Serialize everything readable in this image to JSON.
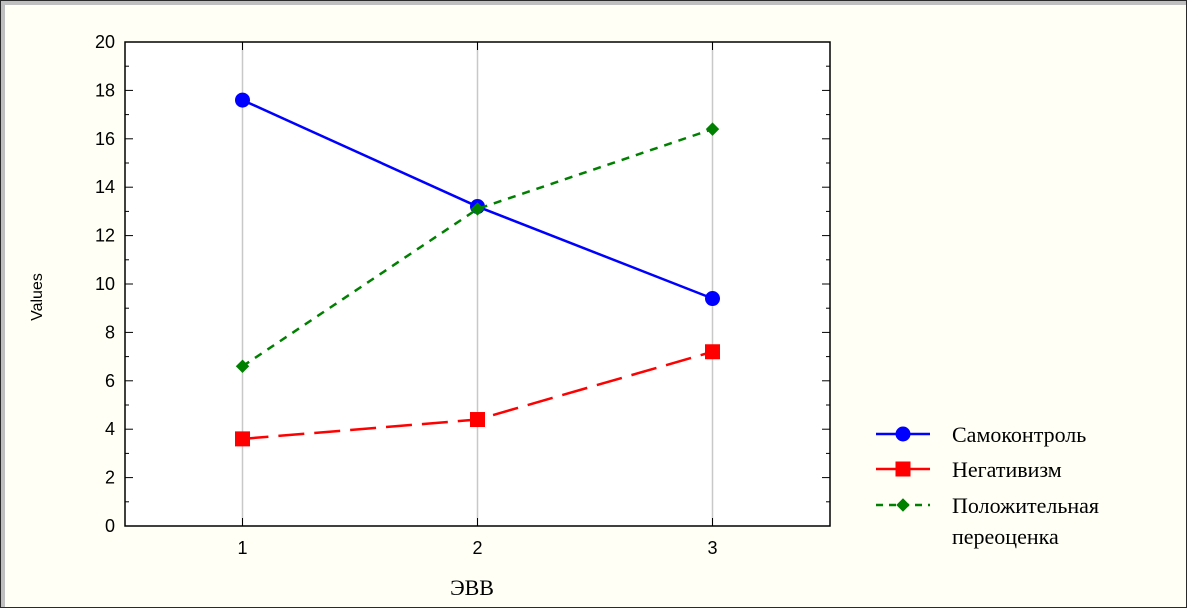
{
  "chart_data": {
    "type": "line",
    "title": "",
    "xlabel": "ЭВВ",
    "ylabel": "Values",
    "x": [
      1,
      2,
      3
    ],
    "x_ticks": [
      "1",
      "2",
      "3"
    ],
    "xlim": [
      0.5,
      3.5
    ],
    "ylim": [
      0,
      20
    ],
    "y_ticks": [
      "0",
      "2",
      "4",
      "6",
      "8",
      "10",
      "12",
      "14",
      "16",
      "18",
      "20"
    ],
    "grid": "vertical",
    "legend_position": "right",
    "series": [
      {
        "name": "Самоконтроль",
        "values": [
          17.6,
          13.2,
          9.4
        ],
        "color": "#0000ff",
        "marker": "circle",
        "line_style": "solid"
      },
      {
        "name": "Негативизм",
        "values": [
          3.6,
          4.4,
          7.2
        ],
        "color": "#ff0000",
        "marker": "square",
        "line_style": "long-dash"
      },
      {
        "name": "Положительная переоценка",
        "name_lines": [
          "Положительная",
          "переоценка"
        ],
        "values": [
          6.6,
          13.1,
          16.4
        ],
        "color": "#008000",
        "marker": "diamond",
        "line_style": "short-dash"
      }
    ]
  }
}
